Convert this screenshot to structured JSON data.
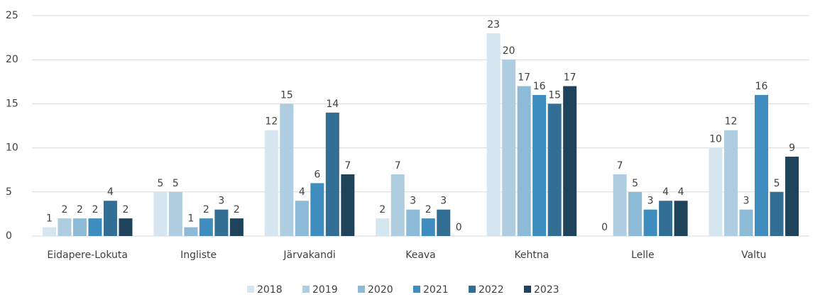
{
  "chart_data": {
    "type": "bar",
    "categories": [
      "Eidapere-Lokuta",
      "Ingliste",
      "Järvakandi",
      "Keava",
      "Kehtna",
      "Lelle",
      "Valtu"
    ],
    "series": [
      {
        "name": "2018",
        "color": "#d6e6f0",
        "values": [
          1,
          5,
          12,
          2,
          23,
          0,
          10
        ]
      },
      {
        "name": "2019",
        "color": "#afcde0",
        "values": [
          2,
          5,
          15,
          7,
          20,
          7,
          12
        ]
      },
      {
        "name": "2020",
        "color": "#8dbad6",
        "values": [
          2,
          1,
          4,
          3,
          17,
          5,
          3
        ]
      },
      {
        "name": "2021",
        "color": "#3f8dbf",
        "values": [
          2,
          2,
          6,
          2,
          16,
          3,
          16
        ]
      },
      {
        "name": "2022",
        "color": "#336f94",
        "values": [
          4,
          3,
          14,
          3,
          15,
          4,
          5
        ]
      },
      {
        "name": "2023",
        "color": "#1f435b",
        "values": [
          2,
          2,
          7,
          0,
          17,
          4,
          9
        ]
      }
    ],
    "ylim": [
      0,
      25
    ],
    "yticks": [
      0,
      5,
      10,
      15,
      20,
      25
    ],
    "grid": true,
    "legend": "bottom"
  }
}
